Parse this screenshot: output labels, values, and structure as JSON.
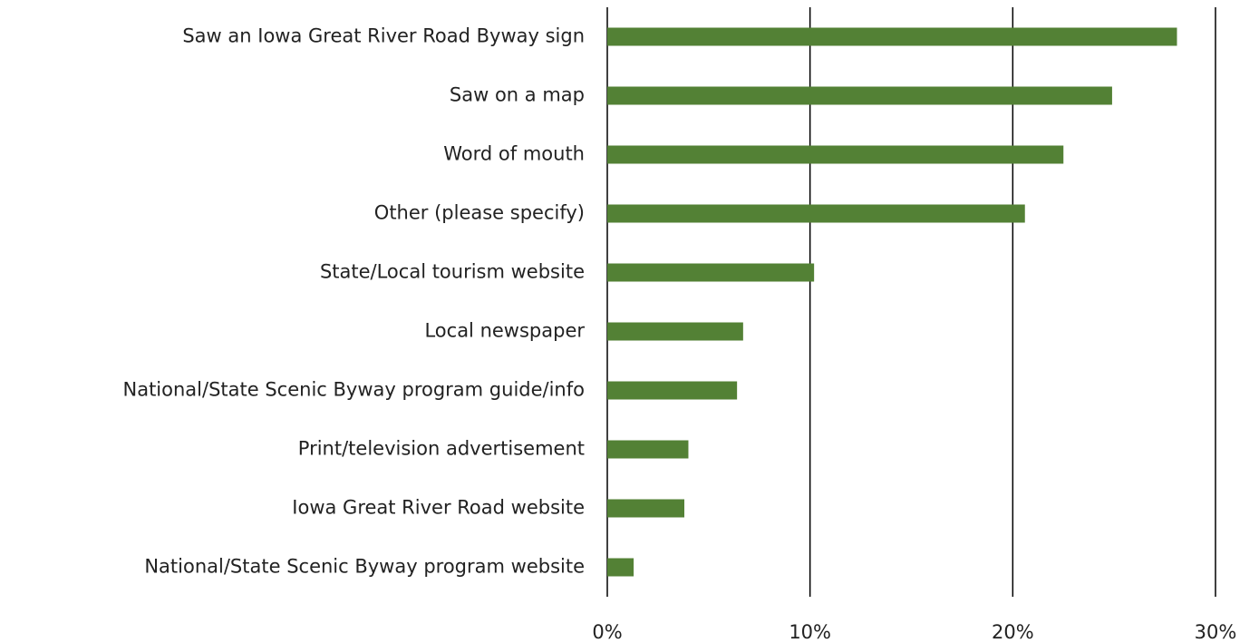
{
  "chart_data": {
    "type": "barh",
    "categories": [
      "Saw an Iowa Great River Road Byway sign",
      "Saw on a map",
      "Word of mouth",
      "Other (please specify)",
      "State/Local tourism website",
      "Local newspaper",
      "National/State Scenic Byway program guide/info",
      "Print/television advertisement",
      "Iowa Great River Road website",
      "National/State Scenic Byway program website"
    ],
    "values": [
      28.1,
      24.9,
      22.5,
      20.6,
      10.2,
      6.7,
      6.4,
      4.0,
      3.8,
      1.3
    ],
    "color": "#538135",
    "xlim": [
      0,
      30
    ],
    "xticks": [
      {
        "value": 0,
        "label": "0%"
      },
      {
        "value": 10,
        "label": "10%"
      },
      {
        "value": 20,
        "label": "20%"
      },
      {
        "value": 30,
        "label": "30%"
      }
    ],
    "grid": true
  }
}
